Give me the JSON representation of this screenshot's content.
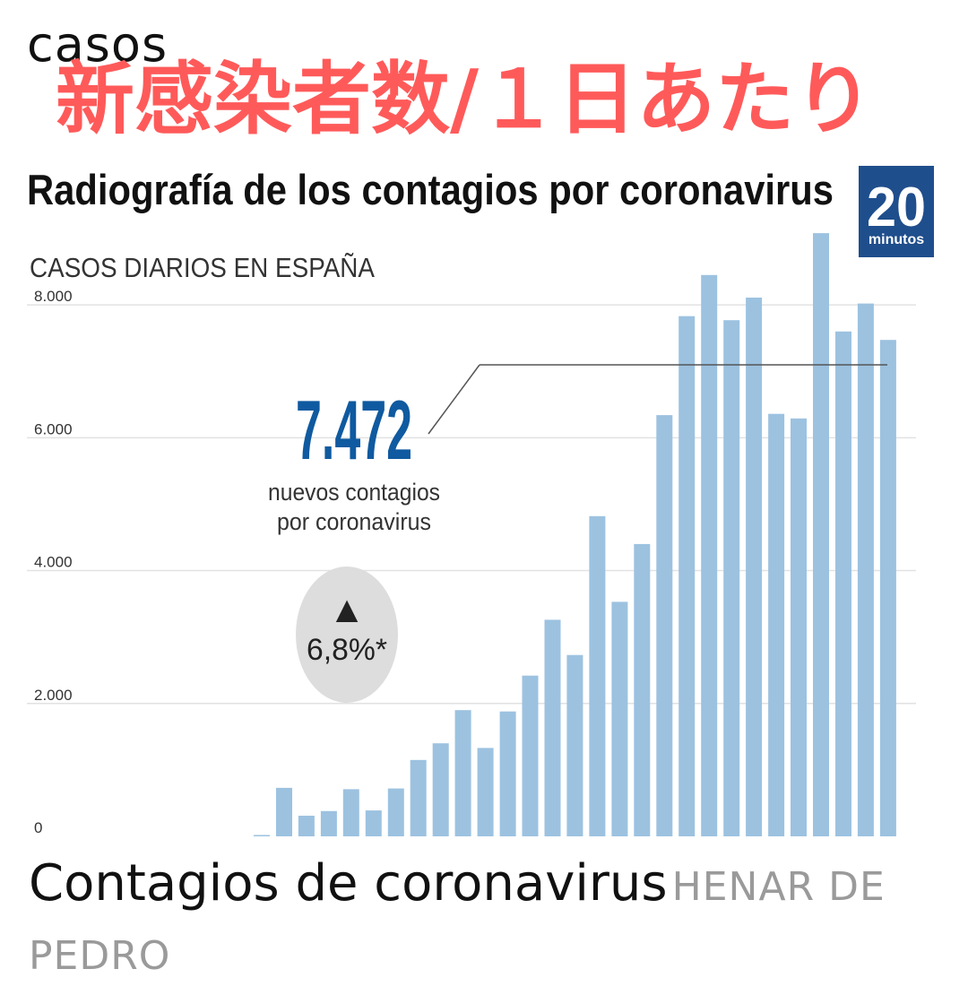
{
  "article": {
    "top_text_fragment": "casos",
    "overlay_jp": "新感染者数/１日あたり",
    "caption": "Contagios de coronavirus",
    "credit": "HENAR DE PEDRO"
  },
  "logo": {
    "number": "20",
    "word": "minutos",
    "color": "#1f4e8c"
  },
  "colors": {
    "bar": "#9cc2e0",
    "highlight": "#0f5aa0",
    "grid": "#e2e2e2",
    "badge": "#dddddd",
    "overlay": "#ff5a5a"
  },
  "chart_data": {
    "type": "bar",
    "title": "Radiografía de los contagios por coronavirus",
    "subtitle": "CASOS DIARIOS EN ESPAÑA",
    "ylim": [
      0,
      9000
    ],
    "yticks": [
      0,
      2000,
      4000,
      6000,
      8000
    ],
    "ytick_labels": [
      "0",
      "2.000",
      "4.000",
      "6.000",
      "8.000"
    ],
    "values": [
      20,
      730,
      310,
      380,
      710,
      390,
      720,
      1150,
      1400,
      1900,
      1330,
      1880,
      2420,
      3260,
      2730,
      4820,
      3530,
      4400,
      6340,
      7830,
      8450,
      7770,
      8110,
      6360,
      6290,
      9080,
      7600,
      8020,
      7472
    ],
    "annotations": {
      "main_value": "7.472",
      "main_label_line1": "nuevos contagios",
      "main_label_line2": "por coronavirus",
      "change_symbol": "▲",
      "change_value": "6,8%*"
    }
  }
}
